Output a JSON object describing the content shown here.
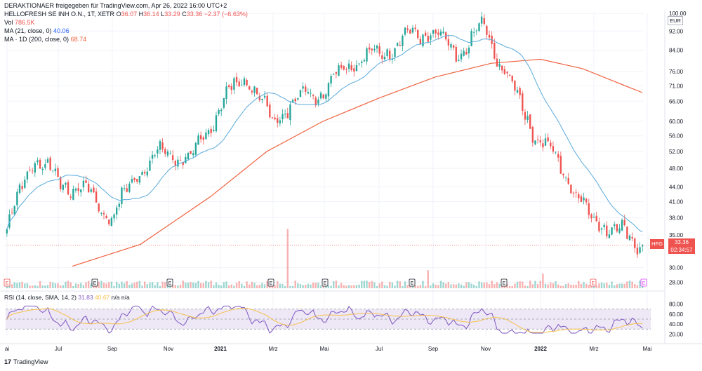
{
  "header": {
    "publisher_line": "DERAKTIONAER freigegeben für TradingView.com, Apr 26, 2022 16:00 UTC+2",
    "instrument": "HELLOFRESH SE INH O.N., 1T, XETR",
    "ohlc": {
      "o_label": "O",
      "o": "36.07",
      "h_label": "H",
      "h": "36.14",
      "l_label": "L",
      "l": "33.29",
      "c_label": "C",
      "c": "33.36",
      "change": "−2.37 (−6.63%)"
    },
    "vol_label": "Vol",
    "vol_value": "786.5K",
    "ma1_label": "MA (21, close, 0)",
    "ma1_value": "40.06",
    "ma2_label": "MA · 1D (200, close, 0)",
    "ma2_value": "68.74"
  },
  "rsi_legend": {
    "label": "RSI (14, close, SMA, 14, 2)",
    "rsi_value": "31.83",
    "sma_value": "40.67",
    "na1": "n/a",
    "na2": "n/a"
  },
  "price_axis": {
    "unit": "EUR",
    "current_symbol": "HFG",
    "current_price": "33.36",
    "countdown": "02:34:57"
  },
  "logo_text": "TradingView",
  "colors": {
    "up": "#26a69a",
    "down": "#ef5350",
    "ma21": "#5aaadc",
    "ma200": "#f0623f",
    "rsi": "#7e57c2",
    "rsi_sma": "#f7c14a",
    "grid": "#f0f3fa",
    "rsi_band": "#ede7f6"
  },
  "chart_data": [
    {
      "type": "candlestick",
      "title": "HELLOFRESH SE INH O.N., 1T, XETR",
      "y_scale": "log",
      "y_ticks": [
        28.0,
        30.0,
        35.0,
        38.0,
        41.0,
        44.0,
        48.0,
        52.0,
        56.0,
        60.0,
        66.0,
        71.0,
        76.0,
        84.0,
        92.0,
        100.0
      ],
      "x_labels": [
        "ai",
        "Jul",
        "Sep",
        "Nov",
        "2021",
        "Mrz",
        "Mai",
        "Jul",
        "Sep",
        "Nov",
        "2022",
        "Mrz",
        "Mai"
      ],
      "series": [
        {
          "name": "MA (21, close, 0)",
          "last": 40.06
        },
        {
          "name": "MA · 1D (200, close, 0)",
          "last": 68.74
        }
      ],
      "close_trend": [
        {
          "x": "Mai 2020",
          "y": 36
        },
        {
          "x": "Jun 2020",
          "y": 51
        },
        {
          "x": "Jul 2020",
          "y": 45
        },
        {
          "x": "Aug 2020",
          "y": 43
        },
        {
          "x": "Sep 2020",
          "y": 38
        },
        {
          "x": "Okt 2020",
          "y": 48
        },
        {
          "x": "Nov 2020",
          "y": 52
        },
        {
          "x": "Dez 2020",
          "y": 50
        },
        {
          "x": "Jan 2021",
          "y": 64
        },
        {
          "x": "Feb 2021",
          "y": 75
        },
        {
          "x": "Mrz 2021",
          "y": 60
        },
        {
          "x": "Apr 2021",
          "y": 67
        },
        {
          "x": "Mai 2021",
          "y": 70
        },
        {
          "x": "Jun 2021",
          "y": 80
        },
        {
          "x": "Jul 2021",
          "y": 82
        },
        {
          "x": "Aug 2021",
          "y": 89
        },
        {
          "x": "Sep 2021",
          "y": 92
        },
        {
          "x": "Okt 2021",
          "y": 82
        },
        {
          "x": "Nov 2021",
          "y": 94
        },
        {
          "x": "Dez 2021",
          "y": 72
        },
        {
          "x": "Jan 2022",
          "y": 56
        },
        {
          "x": "Feb 2022",
          "y": 48
        },
        {
          "x": "Mrz 2022",
          "y": 38
        },
        {
          "x": "Apr 2022",
          "y": 36
        },
        {
          "x": "26 Apr 2022",
          "y": 33.36
        }
      ],
      "earnings_markers": [
        "E",
        "E",
        "E",
        "E",
        "E",
        "E",
        "E",
        "E",
        "E",
        "E"
      ]
    },
    {
      "type": "line",
      "title": "RSI (14, close, SMA, 14, 2)",
      "y_ticks": [
        20.0,
        40.0,
        60.0,
        80.0
      ],
      "band": [
        30,
        70
      ],
      "series": [
        {
          "name": "RSI",
          "last": 31.83
        },
        {
          "name": "SMA",
          "last": 40.67
        }
      ]
    }
  ]
}
